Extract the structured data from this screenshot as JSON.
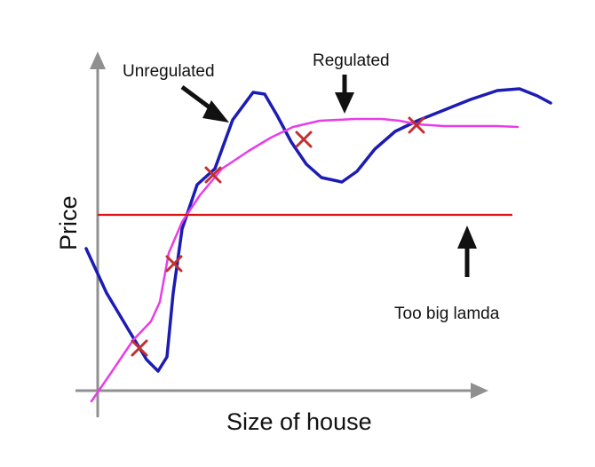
{
  "chart_data": {
    "type": "line",
    "xlabel": "Size of house",
    "ylabel": "Price",
    "grid": false,
    "legend": "none",
    "points": [
      {
        "x": 157,
        "y": 392
      },
      {
        "x": 196,
        "y": 297
      },
      {
        "x": 240,
        "y": 197
      },
      {
        "x": 342,
        "y": 157
      },
      {
        "x": 469,
        "y": 141
      }
    ],
    "series": [
      {
        "color": "#1c1cb4",
        "path": [
          [
            97,
            280
          ],
          [
            120,
            330
          ],
          [
            145,
            372
          ],
          [
            165,
            405
          ],
          [
            178,
            418
          ],
          [
            188,
            402
          ],
          [
            195,
            330
          ],
          [
            205,
            258
          ],
          [
            222,
            208
          ],
          [
            242,
            190
          ],
          [
            262,
            135
          ],
          [
            285,
            104
          ],
          [
            298,
            106
          ],
          [
            312,
            130
          ],
          [
            328,
            160
          ],
          [
            345,
            185
          ],
          [
            362,
            200
          ],
          [
            385,
            205
          ],
          [
            402,
            193
          ],
          [
            422,
            168
          ],
          [
            445,
            148
          ],
          [
            470,
            136
          ],
          [
            500,
            124
          ],
          [
            530,
            112
          ],
          [
            560,
            102
          ],
          [
            585,
            100
          ],
          [
            605,
            108
          ],
          [
            620,
            116
          ]
        ]
      },
      {
        "color": "#e83de8",
        "path": [
          [
            103,
            452
          ],
          [
            125,
            420
          ],
          [
            150,
            383
          ],
          [
            170,
            362
          ],
          [
            180,
            340
          ],
          [
            190,
            285
          ],
          [
            205,
            250
          ],
          [
            225,
            220
          ],
          [
            250,
            190
          ],
          [
            280,
            170
          ],
          [
            305,
            155
          ],
          [
            330,
            143
          ],
          [
            360,
            136
          ],
          [
            400,
            134
          ],
          [
            430,
            134
          ],
          [
            450,
            136
          ],
          [
            470,
            140
          ],
          [
            500,
            142
          ],
          [
            530,
            142
          ],
          [
            560,
            142
          ],
          [
            583,
            143
          ]
        ]
      },
      {
        "color": "#dd1111",
        "path": [
          [
            110,
            242
          ],
          [
            577,
            242
          ]
        ]
      }
    ],
    "annotations": [
      {
        "text": "Unregulated"
      },
      {
        "text": "Regulated"
      },
      {
        "text": "Too big lamda"
      }
    ]
  },
  "colors": {
    "axis": "#909090",
    "marker": "#c03030",
    "arrow": "#111111"
  }
}
